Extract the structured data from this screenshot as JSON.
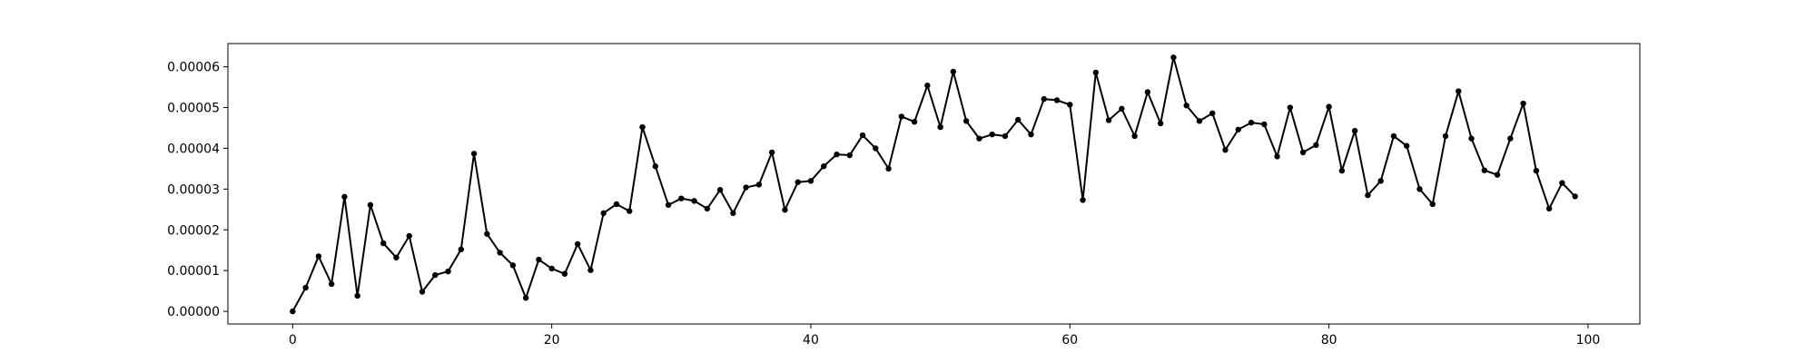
{
  "chart_data": {
    "type": "line",
    "title": "",
    "xlabel": "",
    "ylabel": "",
    "xlim": [
      -5,
      104
    ],
    "ylim": [
      -3.1e-06,
      6.57e-05
    ],
    "x_ticks": [
      0,
      20,
      40,
      60,
      80,
      100
    ],
    "x_tick_labels": [
      "0",
      "20",
      "40",
      "60",
      "80",
      "100"
    ],
    "y_ticks": [
      0,
      1e-05,
      2e-05,
      3e-05,
      4e-05,
      5e-05,
      6e-05
    ],
    "y_tick_labels": [
      "0.00000",
      "0.00001",
      "0.00002",
      "0.00003",
      "0.00004",
      "0.00005",
      "0.00006"
    ],
    "grid": false,
    "line_color": "#000000",
    "marker": "circle",
    "series": [
      {
        "x": [
          0,
          1,
          2,
          3,
          4,
          5,
          6,
          7,
          8,
          9,
          10,
          11,
          12,
          13,
          14,
          15,
          16,
          17,
          18,
          19,
          20,
          21,
          22,
          23,
          24,
          25,
          26,
          27,
          28,
          29,
          30,
          31,
          32,
          33,
          34,
          35,
          36,
          37,
          38,
          39,
          40,
          41,
          42,
          43,
          44,
          45,
          46,
          47,
          48,
          49,
          50,
          51,
          52,
          53,
          54,
          55,
          56,
          57,
          58,
          59,
          60,
          61,
          62,
          63,
          64,
          65,
          66,
          67,
          68,
          69,
          70,
          71,
          72,
          73,
          74,
          75,
          76,
          77,
          78,
          79,
          80,
          81,
          82,
          83,
          84,
          85,
          86,
          87,
          88,
          89,
          90,
          91,
          92,
          93,
          94,
          95,
          96,
          97,
          98,
          99
        ],
        "y": [
          0.0,
          5.8e-06,
          1.35e-05,
          6.7e-06,
          2.81e-05,
          3.8e-06,
          2.61e-05,
          1.67e-05,
          1.32e-05,
          1.85e-05,
          4.8e-06,
          8.9e-06,
          9.8e-06,
          1.52e-05,
          3.87e-05,
          1.9e-05,
          1.44e-05,
          1.13e-05,
          3.3e-06,
          1.27e-05,
          1.05e-05,
          9.2e-06,
          1.65e-05,
          1.01e-05,
          2.41e-05,
          2.63e-05,
          2.46e-05,
          4.52e-05,
          3.56e-05,
          2.61e-05,
          2.77e-05,
          2.71e-05,
          2.52e-05,
          2.98e-05,
          2.41e-05,
          3.04e-05,
          3.11e-05,
          3.9e-05,
          2.49e-05,
          3.17e-05,
          3.2e-05,
          3.56e-05,
          3.85e-05,
          3.83e-05,
          4.32e-05,
          4e-05,
          3.5e-05,
          4.78e-05,
          4.65e-05,
          5.54e-05,
          4.52e-05,
          5.88e-05,
          4.67e-05,
          4.24e-05,
          4.34e-05,
          4.3e-05,
          4.7e-05,
          4.34e-05,
          5.21e-05,
          5.18e-05,
          5.07e-05,
          2.73e-05,
          5.86e-05,
          4.69e-05,
          4.97e-05,
          4.3e-05,
          5.38e-05,
          4.61e-05,
          6.23e-05,
          5.05e-05,
          4.67e-05,
          4.86e-05,
          3.96e-05,
          4.46e-05,
          4.63e-05,
          4.59e-05,
          3.8e-05,
          5e-05,
          3.9e-05,
          4.08e-05,
          5.02e-05,
          3.45e-05,
          4.43e-05,
          2.85e-05,
          3.2e-05,
          4.3e-05,
          4.06e-05,
          3e-05,
          2.63e-05,
          4.3e-05,
          5.4e-05,
          4.24e-05,
          3.46e-05,
          3.35e-05,
          4.24e-05,
          5.1e-05,
          3.45e-05,
          2.52e-05,
          3.15e-05,
          2.82e-05
        ]
      }
    ]
  }
}
